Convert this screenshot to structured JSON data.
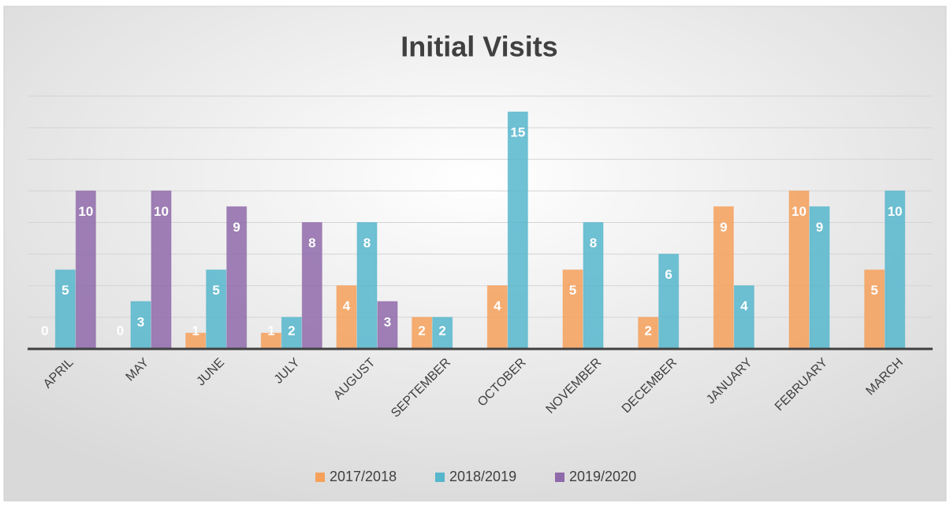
{
  "chart_data": {
    "type": "bar",
    "title": "Initial Visits",
    "categories": [
      "APRIL",
      "MAY",
      "JUNE",
      "JULY",
      "AUGUST",
      "SEPTEMBER",
      "OCTOBER",
      "NOVEMBER",
      "DECEMBER",
      "JANUARY",
      "FEBRUARY",
      "MARCH"
    ],
    "series": [
      {
        "name": "2017/2018",
        "color": "#f6a05a",
        "values": [
          0,
          0,
          1,
          1,
          4,
          2,
          4,
          5,
          2,
          9,
          10,
          5
        ]
      },
      {
        "name": "2018/2019",
        "color": "#56b6cc",
        "values": [
          5,
          3,
          5,
          2,
          8,
          2,
          15,
          8,
          6,
          4,
          9,
          10
        ]
      },
      {
        "name": "2019/2020",
        "color": "#8f6aaa",
        "values": [
          10,
          10,
          9,
          8,
          3,
          null,
          null,
          null,
          null,
          null,
          null,
          null
        ]
      }
    ],
    "ylim": [
      0,
      16
    ],
    "yticks": [
      0,
      2,
      4,
      6,
      8,
      10,
      12,
      14,
      16
    ],
    "grid": true,
    "legend": "bottom"
  }
}
